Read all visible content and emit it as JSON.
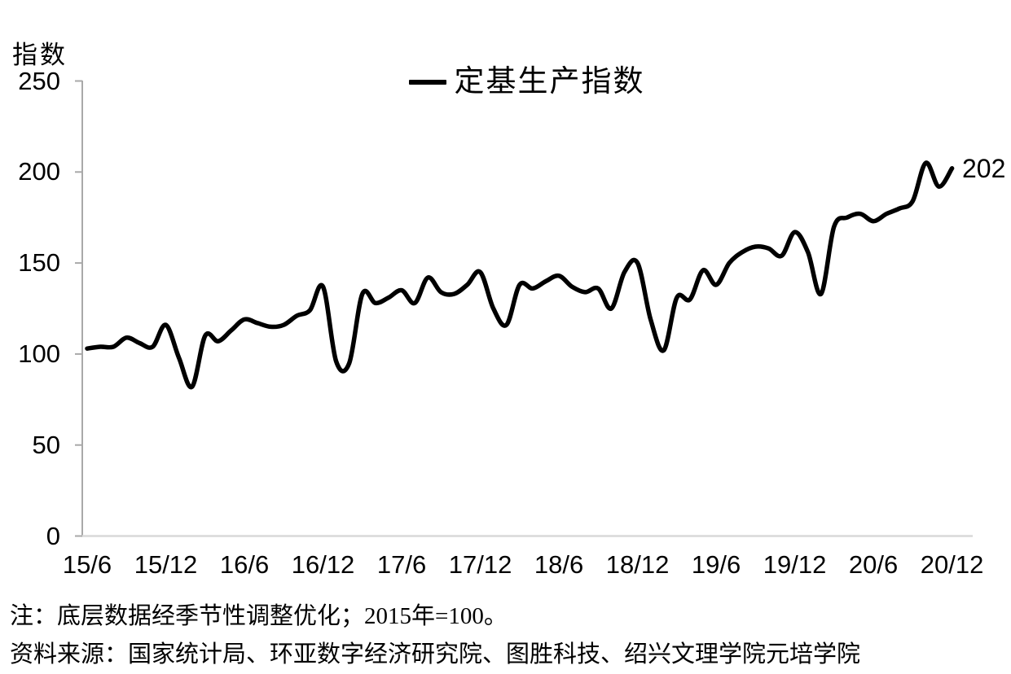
{
  "page": {
    "background": "#ffffff",
    "text_color": "#000000"
  },
  "chart_data": {
    "type": "line",
    "title": "",
    "y_axis_title": "指数",
    "legend": [
      {
        "name": "定基生产指数",
        "color": "#000000"
      }
    ],
    "legend_position": "top-center",
    "grid": false,
    "smooth": true,
    "line_color": "#000000",
    "axis_color": "#a9a9a9",
    "baseline_color": "#d9d9d9",
    "ylim": [
      0,
      250
    ],
    "y_ticks": [
      0,
      50,
      100,
      150,
      200,
      250
    ],
    "x_tick_labels": [
      "15/6",
      "15/12",
      "16/6",
      "16/12",
      "17/6",
      "17/12",
      "18/6",
      "18/12",
      "19/6",
      "19/12",
      "20/6",
      "20/12"
    ],
    "points_per_tick": 6,
    "first_point_label": "15/6",
    "last_point_label": "20/12",
    "end_point_label": "202",
    "values": [
      103,
      104,
      104,
      109,
      106,
      104,
      116,
      98,
      82,
      110,
      107,
      113,
      119,
      117,
      115,
      116,
      121,
      124,
      137,
      96,
      95,
      133,
      128,
      131,
      135,
      128,
      142,
      134,
      133,
      138,
      145,
      125,
      116,
      138,
      136,
      140,
      143,
      137,
      134,
      136,
      125,
      145,
      150,
      119,
      102,
      131,
      130,
      146,
      138,
      150,
      156,
      159,
      158,
      154,
      167,
      156,
      133,
      170,
      175,
      177,
      173,
      177,
      180,
      184,
      205,
      192,
      202
    ]
  },
  "notes": {
    "note": "注：底层数据经季节性调整优化；2015年=100。",
    "source": "资料来源：国家统计局、环亚数字经济研究院、图胜科技、绍兴文理学院元培学院"
  }
}
